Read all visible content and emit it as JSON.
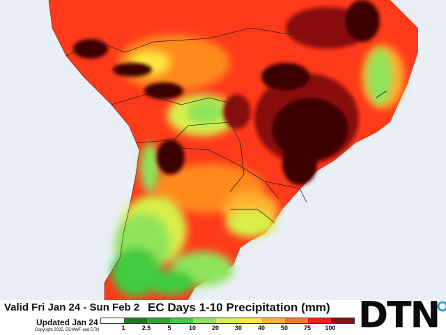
{
  "footer": {
    "valid": "Valid Fri Jan 24 - Sun Feb 2",
    "title": "EC Days 1-10 Precipitation (mm)",
    "updated": "Updated Jan 24",
    "copyright": "Copyright 2025, ECMWF and DTN",
    "logo": "DTN"
  },
  "legend": {
    "ticks": [
      "1",
      "2.5",
      "5",
      "10",
      "20",
      "30",
      "40",
      "50",
      "75",
      "100"
    ],
    "colors": [
      "#ffffff",
      "#1f7a1f",
      "#2ea52e",
      "#3fcb3f",
      "#8fe35a",
      "#d8f04a",
      "#ffe640",
      "#ffb22e",
      "#ff7a1e",
      "#e8231a",
      "#8a0d0d",
      "#3a0505"
    ]
  },
  "colors": {
    "ocean": "#e9eff5",
    "land_dry": "#f7f7f7",
    "border": "#222222",
    "logo_accent": "#2aa3c9"
  }
}
